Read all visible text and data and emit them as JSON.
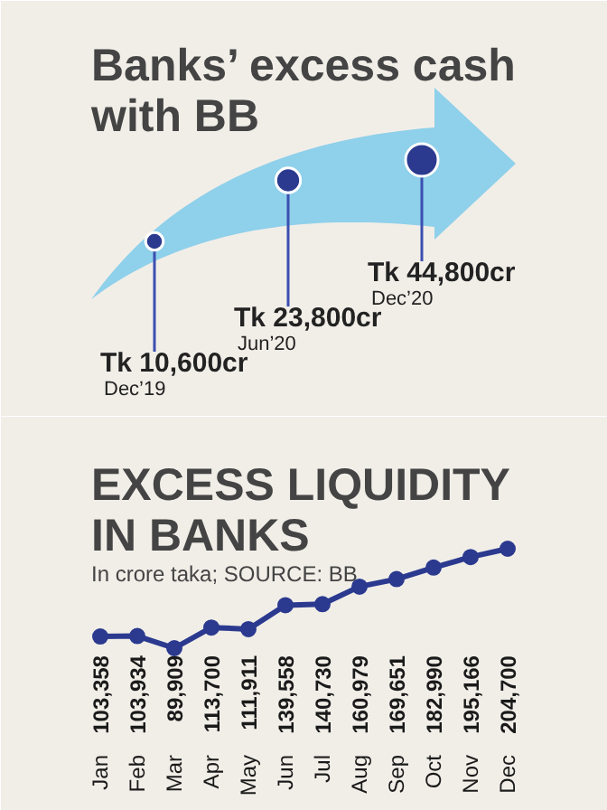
{
  "chart_data": [
    {
      "type": "other",
      "title": "Banks’ excess cash with BB",
      "categories": [
        "Dec’19",
        "Jun’20",
        "Dec’20"
      ],
      "values": [
        10600,
        23800,
        44800
      ],
      "value_labels": [
        "Tk 10,600cr",
        "Tk 23,800cr",
        "Tk 44,800cr"
      ],
      "color": "#2b3a8f"
    },
    {
      "type": "line",
      "title": "EXCESS LIQUIDITY IN BANKS",
      "subtitle": "In crore taka; SOURCE: BB",
      "categories": [
        "Jan",
        "Feb",
        "Mar",
        "Apr",
        "May",
        "Jun",
        "Jul",
        "Aug",
        "Sep",
        "Oct",
        "Nov",
        "Dec"
      ],
      "values": [
        103358,
        103934,
        89909,
        113700,
        111911,
        139558,
        140730,
        160979,
        169651,
        182990,
        195166,
        204700
      ],
      "color": "#2b3a8f",
      "value_labels": [
        "103,358",
        "103,934",
        "89,909",
        "113,700",
        "111,911",
        "139,558",
        "140,730",
        "160,979",
        "169,651",
        "182,990",
        "195,166",
        "204,700"
      ],
      "marker": "circle"
    }
  ]
}
